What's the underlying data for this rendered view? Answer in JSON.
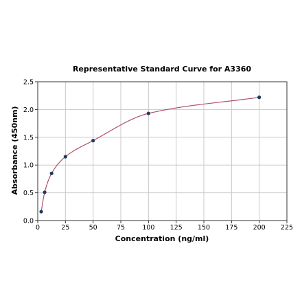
{
  "chart_data": {
    "type": "scatter",
    "title": "Representative Standard Curve for A3360",
    "xlabel": "Concentration (ng/ml)",
    "ylabel": "Absorbance (450nm)",
    "xlim": [
      0,
      225
    ],
    "ylim": [
      0,
      2.5
    ],
    "x_ticks": [
      0,
      25,
      50,
      75,
      100,
      125,
      150,
      175,
      200,
      225
    ],
    "y_ticks": [
      0.0,
      0.5,
      1.0,
      1.5,
      2.0,
      2.5
    ],
    "x_tick_labels": [
      "0",
      "25",
      "50",
      "75",
      "100",
      "125",
      "150",
      "175",
      "200",
      "225"
    ],
    "y_tick_labels": [
      "0.0",
      "0.5",
      "1.0",
      "1.5",
      "2.0",
      "2.5"
    ],
    "grid": true,
    "series": [
      {
        "points": [
          {
            "x": 3.125,
            "y": 0.16
          },
          {
            "x": 6.25,
            "y": 0.51
          },
          {
            "x": 12.5,
            "y": 0.85
          },
          {
            "x": 25,
            "y": 1.15
          },
          {
            "x": 50,
            "y": 1.44
          },
          {
            "x": 100,
            "y": 1.93
          },
          {
            "x": 200,
            "y": 2.22
          }
        ],
        "color": "#1f3a5f",
        "fit_color": "#b0506a"
      }
    ]
  }
}
